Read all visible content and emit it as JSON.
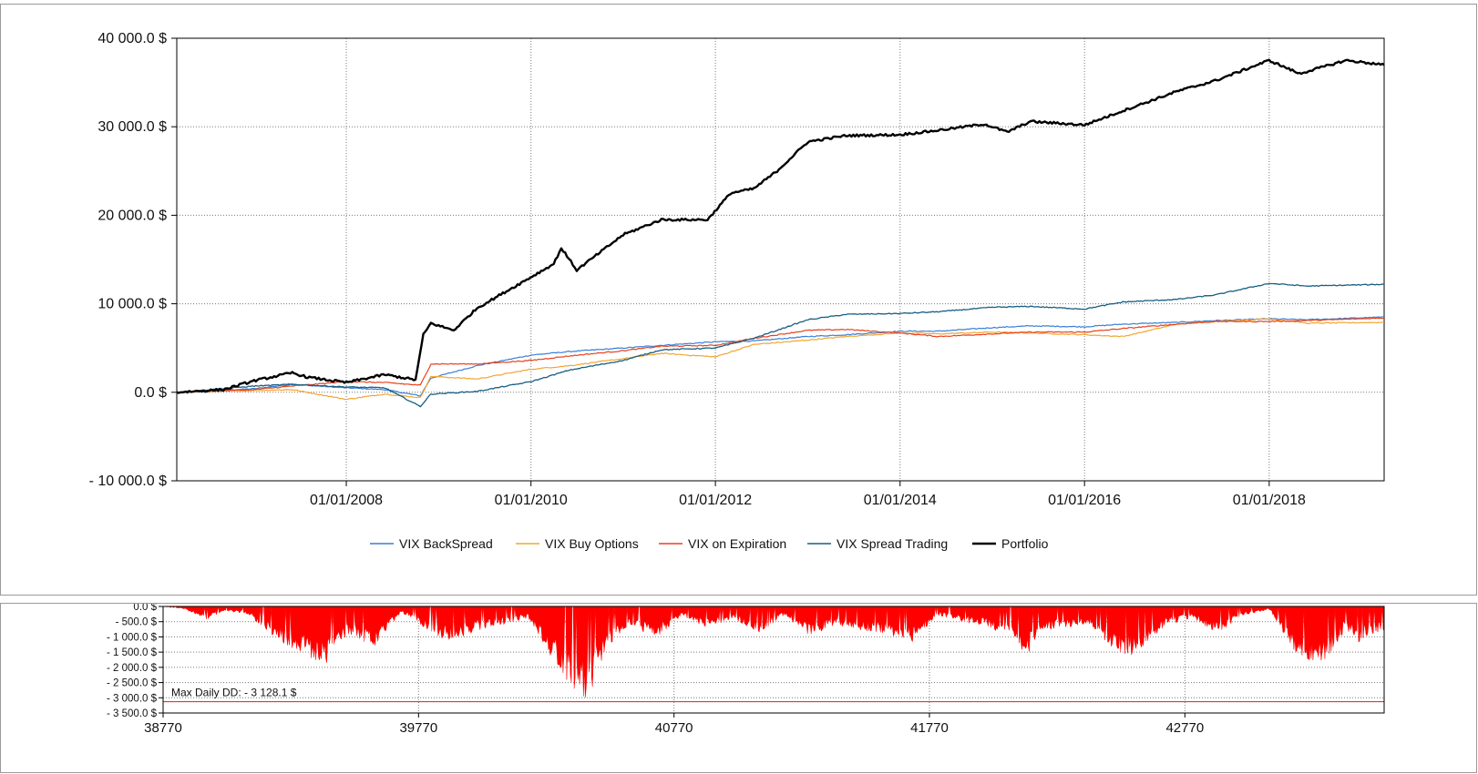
{
  "chart_data": [
    {
      "type": "line",
      "title": "",
      "xlabel": "",
      "ylabel": "",
      "x_range": [
        "2006-03-01",
        "2019-04-01"
      ],
      "ylim": [
        -10000,
        40000
      ],
      "y_ticks": [
        {
          "value": 40000,
          "label": "40 000.0 $"
        },
        {
          "value": 30000,
          "label": "30 000.0 $"
        },
        {
          "value": 20000,
          "label": "20 000.0 $"
        },
        {
          "value": 10000,
          "label": "10 000.0 $"
        },
        {
          "value": 0,
          "label": "0.0 $"
        },
        {
          "value": -10000,
          "label": "- 10 000.0 $"
        }
      ],
      "x_ticks": [
        {
          "value": "2008-01-01",
          "label": "01/01/2008"
        },
        {
          "value": "2010-01-01",
          "label": "01/01/2010"
        },
        {
          "value": "2012-01-01",
          "label": "01/01/2012"
        },
        {
          "value": "2014-01-01",
          "label": "01/01/2014"
        },
        {
          "value": "2016-01-01",
          "label": "01/01/2016"
        },
        {
          "value": "2018-01-01",
          "label": "01/01/2018"
        }
      ],
      "grid": true,
      "legend_position": "bottom",
      "series": [
        {
          "name": "VIX BackSpread",
          "color": "#3a7fd5",
          "width": 1.2,
          "points": [
            [
              "2006-03-01",
              0
            ],
            [
              "2007-01-01",
              400
            ],
            [
              "2007-06-01",
              900
            ],
            [
              "2008-01-01",
              500
            ],
            [
              "2008-06-01",
              300
            ],
            [
              "2008-10-20",
              -400
            ],
            [
              "2008-12-01",
              1600
            ],
            [
              "2009-06-01",
              3000
            ],
            [
              "2010-01-01",
              4200
            ],
            [
              "2010-06-01",
              4600
            ],
            [
              "2011-01-01",
              5000
            ],
            [
              "2011-06-01",
              5300
            ],
            [
              "2012-01-01",
              5700
            ],
            [
              "2012-06-01",
              5800
            ],
            [
              "2013-01-01",
              6300
            ],
            [
              "2013-06-01",
              6500
            ],
            [
              "2014-01-01",
              6900
            ],
            [
              "2014-06-01",
              6900
            ],
            [
              "2015-01-01",
              7300
            ],
            [
              "2015-06-01",
              7500
            ],
            [
              "2016-01-01",
              7400
            ],
            [
              "2016-06-01",
              7700
            ],
            [
              "2017-01-01",
              7900
            ],
            [
              "2017-06-01",
              8100
            ],
            [
              "2018-01-01",
              8300
            ],
            [
              "2018-06-01",
              8200
            ],
            [
              "2019-04-01",
              8500
            ]
          ]
        },
        {
          "name": "VIX Buy Options",
          "color": "#f2a531",
          "width": 1.2,
          "points": [
            [
              "2006-03-01",
              0
            ],
            [
              "2007-01-01",
              200
            ],
            [
              "2007-06-01",
              300
            ],
            [
              "2008-01-01",
              -800
            ],
            [
              "2008-06-01",
              -200
            ],
            [
              "2008-10-20",
              -600
            ],
            [
              "2008-12-01",
              1800
            ],
            [
              "2009-06-01",
              1500
            ],
            [
              "2010-01-01",
              2600
            ],
            [
              "2010-06-01",
              3000
            ],
            [
              "2011-01-01",
              3800
            ],
            [
              "2011-06-01",
              4400
            ],
            [
              "2012-01-01",
              4000
            ],
            [
              "2012-06-01",
              5400
            ],
            [
              "2013-01-01",
              5900
            ],
            [
              "2013-06-01",
              6300
            ],
            [
              "2014-01-01",
              6700
            ],
            [
              "2014-06-01",
              6600
            ],
            [
              "2015-01-01",
              6800
            ],
            [
              "2015-06-01",
              6700
            ],
            [
              "2016-01-01",
              6500
            ],
            [
              "2016-06-01",
              6300
            ],
            [
              "2017-01-01",
              7700
            ],
            [
              "2017-06-01",
              8000
            ],
            [
              "2018-01-01",
              8300
            ],
            [
              "2018-06-01",
              7800
            ],
            [
              "2019-04-01",
              7900
            ]
          ]
        },
        {
          "name": "VIX on Expiration",
          "color": "#e8401c",
          "width": 1.2,
          "points": [
            [
              "2006-03-01",
              0
            ],
            [
              "2007-01-01",
              300
            ],
            [
              "2007-06-01",
              700
            ],
            [
              "2008-01-01",
              1200
            ],
            [
              "2008-06-01",
              1100
            ],
            [
              "2008-10-20",
              800
            ],
            [
              "2008-12-01",
              3200
            ],
            [
              "2009-06-01",
              3200
            ],
            [
              "2010-01-01",
              3600
            ],
            [
              "2010-06-01",
              4100
            ],
            [
              "2011-01-01",
              4700
            ],
            [
              "2011-06-01",
              5200
            ],
            [
              "2012-01-01",
              5300
            ],
            [
              "2012-06-01",
              6100
            ],
            [
              "2013-01-01",
              7000
            ],
            [
              "2013-06-01",
              7100
            ],
            [
              "2014-01-01",
              6700
            ],
            [
              "2014-06-01",
              6300
            ],
            [
              "2015-01-01",
              6600
            ],
            [
              "2015-06-01",
              6800
            ],
            [
              "2016-01-01",
              6800
            ],
            [
              "2016-06-01",
              7200
            ],
            [
              "2017-01-01",
              7700
            ],
            [
              "2017-06-01",
              8000
            ],
            [
              "2018-01-01",
              8000
            ],
            [
              "2018-06-01",
              8100
            ],
            [
              "2019-04-01",
              8400
            ]
          ]
        },
        {
          "name": "VIX Spread Trading",
          "color": "#185f82",
          "width": 1.3,
          "points": [
            [
              "2006-03-01",
              0
            ],
            [
              "2007-01-01",
              700
            ],
            [
              "2007-06-01",
              900
            ],
            [
              "2008-01-01",
              600
            ],
            [
              "2008-06-01",
              500
            ],
            [
              "2008-10-20",
              -1600
            ],
            [
              "2008-12-01",
              -200
            ],
            [
              "2009-06-01",
              100
            ],
            [
              "2010-01-01",
              1200
            ],
            [
              "2010-06-01",
              2500
            ],
            [
              "2011-01-01",
              3600
            ],
            [
              "2011-06-01",
              4800
            ],
            [
              "2012-01-01",
              5000
            ],
            [
              "2012-06-01",
              6100
            ],
            [
              "2013-01-01",
              8200
            ],
            [
              "2013-06-01",
              8800
            ],
            [
              "2014-01-01",
              8900
            ],
            [
              "2014-06-01",
              9100
            ],
            [
              "2015-01-01",
              9600
            ],
            [
              "2015-06-01",
              9700
            ],
            [
              "2016-01-01",
              9400
            ],
            [
              "2016-06-01",
              10200
            ],
            [
              "2017-01-01",
              10500
            ],
            [
              "2017-06-01",
              11000
            ],
            [
              "2018-01-01",
              12300
            ],
            [
              "2018-06-01",
              12000
            ],
            [
              "2019-04-01",
              12200
            ]
          ]
        },
        {
          "name": "Portfolio",
          "color": "#000000",
          "width": 2.4,
          "points": [
            [
              "2006-03-01",
              0
            ],
            [
              "2006-09-01",
              300
            ],
            [
              "2007-01-01",
              1300
            ],
            [
              "2007-06-01",
              2200
            ],
            [
              "2007-08-01",
              1700
            ],
            [
              "2008-01-01",
              1100
            ],
            [
              "2008-06-01",
              2000
            ],
            [
              "2008-10-01",
              1400
            ],
            [
              "2008-11-01",
              6500
            ],
            [
              "2008-12-01",
              7800
            ],
            [
              "2009-03-01",
              7000
            ],
            [
              "2009-06-01",
              9500
            ],
            [
              "2009-12-01",
              12500
            ],
            [
              "2010-04-01",
              14500
            ],
            [
              "2010-05-01",
              16300
            ],
            [
              "2010-07-01",
              13800
            ],
            [
              "2011-01-01",
              17800
            ],
            [
              "2011-06-01",
              19500
            ],
            [
              "2011-12-01",
              19500
            ],
            [
              "2012-03-01",
              22500
            ],
            [
              "2012-06-01",
              23000
            ],
            [
              "2012-09-01",
              25000
            ],
            [
              "2013-01-01",
              28300
            ],
            [
              "2013-06-01",
              29000
            ],
            [
              "2014-01-01",
              29100
            ],
            [
              "2014-06-01",
              29600
            ],
            [
              "2014-12-01",
              30300
            ],
            [
              "2015-03-01",
              29400
            ],
            [
              "2015-06-01",
              30600
            ],
            [
              "2016-01-01",
              30200
            ],
            [
              "2016-06-01",
              31800
            ],
            [
              "2017-01-01",
              34000
            ],
            [
              "2017-06-01",
              35200
            ],
            [
              "2018-01-01",
              37500
            ],
            [
              "2018-05-01",
              36000
            ],
            [
              "2018-11-01",
              37500
            ],
            [
              "2019-04-01",
              37000
            ]
          ]
        }
      ]
    },
    {
      "type": "area",
      "title": "",
      "xlabel": "",
      "ylabel": "",
      "xlim": [
        38770,
        43550
      ],
      "ylim": [
        -3500,
        0
      ],
      "y_ticks": [
        {
          "value": 0,
          "label": "0.0 $"
        },
        {
          "value": -500,
          "label": "- 500.0 $"
        },
        {
          "value": -1000,
          "label": "- 1 000.0 $"
        },
        {
          "value": -1500,
          "label": "- 1 500.0 $"
        },
        {
          "value": -2000,
          "label": "- 2 000.0 $"
        },
        {
          "value": -2500,
          "label": "- 2 500.0 $"
        },
        {
          "value": -3000,
          "label": "- 3 000.0 $"
        },
        {
          "value": -3500,
          "label": "- 3 500.0 $"
        }
      ],
      "x_ticks": [
        38770,
        39770,
        40770,
        41770,
        42770
      ],
      "grid": true,
      "fill_color": "#ff0000",
      "reference_line": {
        "value": -3128.1,
        "color": "#d93a3a"
      },
      "annotation": "Max Daily DD: - 3 128.1 $",
      "series": [
        {
          "name": "",
          "points": [
            [
              38770,
              0
            ],
            [
              38850,
              -80
            ],
            [
              38950,
              -450
            ],
            [
              39000,
              -150
            ],
            [
              39100,
              -250
            ],
            [
              39200,
              -1000
            ],
            [
              39300,
              -1500
            ],
            [
              39400,
              -2000
            ],
            [
              39500,
              -900
            ],
            [
              39600,
              -1400
            ],
            [
              39700,
              -200
            ],
            [
              39850,
              -1000
            ],
            [
              39900,
              -1200
            ],
            [
              40000,
              -800
            ],
            [
              40100,
              -600
            ],
            [
              40200,
              -400
            ],
            [
              40350,
              -2500
            ],
            [
              40430,
              -3128.1
            ],
            [
              40500,
              -1500
            ],
            [
              40600,
              -600
            ],
            [
              40700,
              -1100
            ],
            [
              40800,
              -300
            ],
            [
              40900,
              -700
            ],
            [
              41000,
              -400
            ],
            [
              41100,
              -900
            ],
            [
              41200,
              -300
            ],
            [
              41300,
              -1000
            ],
            [
              41400,
              -600
            ],
            [
              41500,
              -800
            ],
            [
              41600,
              -900
            ],
            [
              41700,
              -1200
            ],
            [
              41800,
              -300
            ],
            [
              41900,
              -500
            ],
            [
              42000,
              -700
            ],
            [
              42100,
              -1100
            ],
            [
              42150,
              -1700
            ],
            [
              42200,
              -800
            ],
            [
              42400,
              -600
            ],
            [
              42500,
              -1500
            ],
            [
              42600,
              -1700
            ],
            [
              42700,
              -600
            ],
            [
              42800,
              -400
            ],
            [
              42900,
              -900
            ],
            [
              43000,
              -300
            ],
            [
              43100,
              -100
            ],
            [
              43200,
              -1500
            ],
            [
              43300,
              -2000
            ],
            [
              43400,
              -800
            ],
            [
              43450,
              -1200
            ],
            [
              43550,
              -800
            ]
          ]
        }
      ]
    }
  ]
}
